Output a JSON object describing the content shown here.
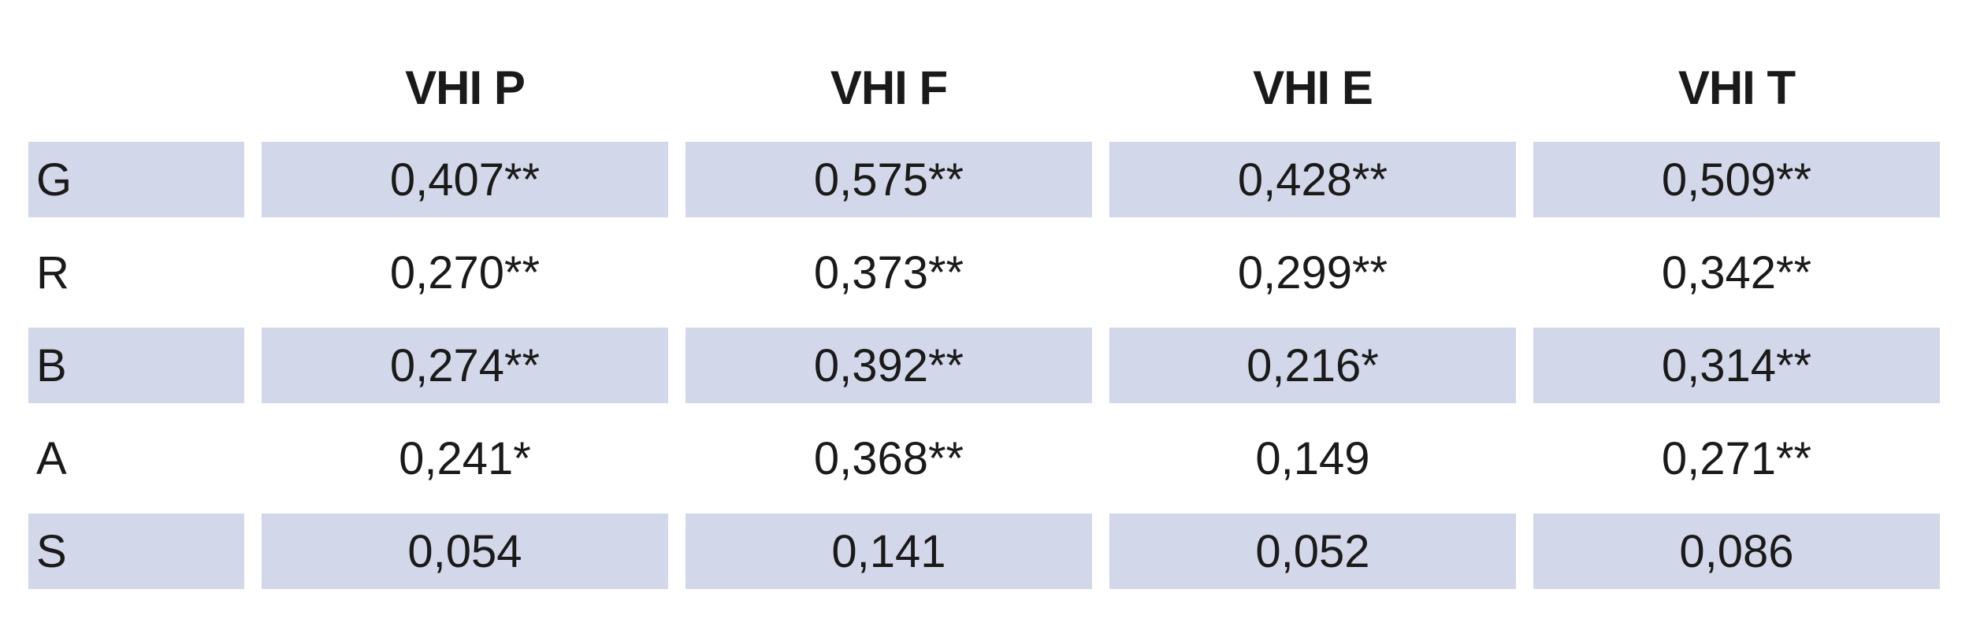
{
  "table": {
    "columns": [
      "VHI P",
      "VHI F",
      "VHI E",
      "VHI T"
    ],
    "rows": [
      {
        "label": "G",
        "values": [
          "0,407**",
          "0,575**",
          "0,428**",
          "0,509**"
        ]
      },
      {
        "label": "R",
        "values": [
          "0,270**",
          "0,373**",
          "0,299**",
          "0,342**"
        ]
      },
      {
        "label": "B",
        "values": [
          "0,274**",
          "0,392**",
          "0,216*",
          "0,314**"
        ]
      },
      {
        "label": "A",
        "values": [
          "0,241*",
          "0,368**",
          "0,149",
          "0,271**"
        ]
      },
      {
        "label": "S",
        "values": [
          "0,054",
          "0,141",
          "0,052",
          "0,086"
        ]
      }
    ]
  },
  "colors": {
    "shade": "#d3d7ea",
    "text": "#1a1a1a"
  }
}
